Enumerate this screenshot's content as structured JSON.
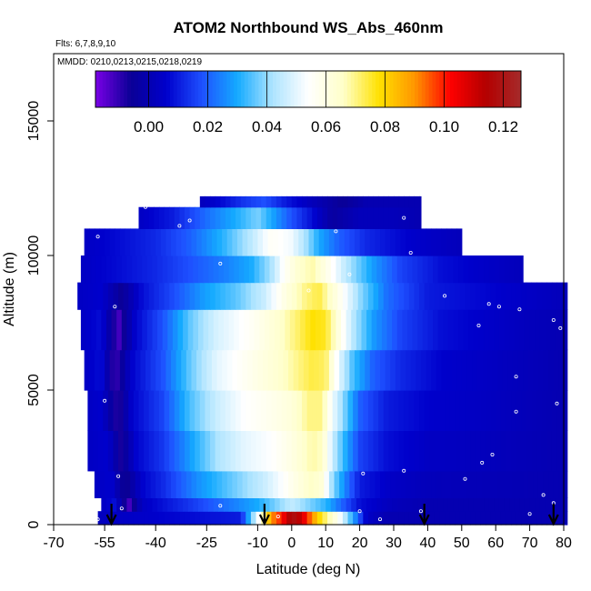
{
  "chart_data": {
    "type": "heatmap",
    "title": "ATOM2 Northbound WS_Abs_460nm",
    "flights_note": "Flts: 6,7,8,9,10",
    "dates_note": "MMDD: 0210,0213,0215,0218,0219",
    "xlabel": "Latitude (deg N)",
    "ylabel": "Altitude (m)",
    "xlim": [
      -70,
      80
    ],
    "ylim": [
      0,
      17500
    ],
    "x_ticks": [
      -70,
      -55,
      -40,
      -25,
      -10,
      0,
      10,
      20,
      30,
      40,
      50,
      60,
      70,
      80
    ],
    "x_tick_labels": [
      "-70",
      "-55",
      "-40",
      "-25",
      "-10",
      "0",
      "10",
      "20",
      "30",
      "40",
      "50",
      "60",
      "70",
      "80"
    ],
    "y_ticks": [
      0,
      5000,
      10000,
      15000
    ],
    "y_tick_labels": [
      "0",
      "5000",
      "10000",
      "15000"
    ],
    "colorbar": {
      "range": [
        -0.018,
        0.126
      ],
      "ticks": [
        0.0,
        0.02,
        0.04,
        0.06,
        0.08,
        0.1,
        0.12
      ],
      "tick_labels": [
        "0.00",
        "0.02",
        "0.04",
        "0.06",
        "0.08",
        "0.10",
        "0.12"
      ],
      "placement": "top, inside plot",
      "colors": [
        "#7a00e6",
        "#0a0096",
        "#0000cc",
        "#1e50ff",
        "#14aaff",
        "#aee4ff",
        "#ffffff",
        "#ffffc8",
        "#ffe100",
        "#ff9600",
        "#ff0000",
        "#b40000",
        "#a52a2a"
      ]
    },
    "series": [
      {
        "name": "WS_Abs_460nm",
        "layers": [
          {
            "alt_range": [
              0,
              500
            ],
            "lat_range": [
              -57,
              81
            ],
            "points": [
              [
                -57,
                0.003
              ],
              [
                -15,
                0.01
              ],
              [
                -9,
                0.06
              ],
              [
                -6,
                0.09
              ],
              [
                -3,
                0.1
              ],
              [
                0,
                0.12
              ],
              [
                3,
                0.11
              ],
              [
                6,
                0.09
              ],
              [
                9,
                0.075
              ],
              [
                13,
                0.06
              ],
              [
                18,
                0.03
              ],
              [
                22,
                0.005
              ],
              [
                28,
                0.0
              ],
              [
                81,
                0.0
              ]
            ]
          },
          {
            "alt_range": [
              500,
              1000
            ],
            "lat_range": [
              -56,
              81
            ],
            "points": [
              [
                -56,
                0.004
              ],
              [
                -52,
                0.008
              ],
              [
                -48,
                -0.013
              ],
              [
                -44,
                0.004
              ],
              [
                -30,
                0.014
              ],
              [
                -10,
                0.03
              ],
              [
                0,
                0.045
              ],
              [
                10,
                0.032
              ],
              [
                20,
                0.008
              ],
              [
                30,
                0.002
              ],
              [
                40,
                0.0
              ],
              [
                81,
                0.0
              ]
            ]
          },
          {
            "alt_range": [
              1000,
              2000
            ],
            "lat_range": [
              -58,
              81
            ],
            "points": [
              [
                -58,
                0.004
              ],
              [
                -53,
                0.006
              ],
              [
                -49,
                -0.008
              ],
              [
                -44,
                0.006
              ],
              [
                -38,
                0.012
              ],
              [
                -28,
                0.026
              ],
              [
                -18,
                0.036
              ],
              [
                -8,
                0.046
              ],
              [
                0,
                0.058
              ],
              [
                6,
                0.066
              ],
              [
                9,
                0.062
              ],
              [
                12,
                0.04
              ],
              [
                16,
                0.024
              ],
              [
                20,
                0.01
              ],
              [
                30,
                0.004
              ],
              [
                40,
                0.002
              ],
              [
                81,
                0.0
              ]
            ]
          },
          {
            "alt_range": [
              2000,
              3500
            ],
            "lat_range": [
              -60,
              81
            ],
            "points": [
              [
                -60,
                0.004
              ],
              [
                -54,
                0.006
              ],
              [
                -50,
                -0.008
              ],
              [
                -46,
                0.006
              ],
              [
                -38,
                0.014
              ],
              [
                -30,
                0.028
              ],
              [
                -22,
                0.042
              ],
              [
                -14,
                0.05
              ],
              [
                -6,
                0.054
              ],
              [
                0,
                0.06
              ],
              [
                6,
                0.068
              ],
              [
                9,
                0.066
              ],
              [
                12,
                0.046
              ],
              [
                16,
                0.03
              ],
              [
                20,
                0.016
              ],
              [
                28,
                0.008
              ],
              [
                40,
                0.004
              ],
              [
                81,
                0.0
              ]
            ]
          },
          {
            "alt_range": [
              3500,
              5000
            ],
            "lat_range": [
              -60,
              81
            ],
            "points": [
              [
                -60,
                0.004
              ],
              [
                -56,
                0.006
              ],
              [
                -51,
                -0.01
              ],
              [
                -47,
                0.006
              ],
              [
                -38,
                0.016
              ],
              [
                -30,
                0.034
              ],
              [
                -22,
                0.046
              ],
              [
                -14,
                0.054
              ],
              [
                -6,
                0.058
              ],
              [
                0,
                0.062
              ],
              [
                5,
                0.07
              ],
              [
                9,
                0.07
              ],
              [
                12,
                0.052
              ],
              [
                16,
                0.036
              ],
              [
                20,
                0.02
              ],
              [
                28,
                0.01
              ],
              [
                40,
                0.006
              ],
              [
                81,
                0.0
              ]
            ]
          },
          {
            "alt_range": [
              5000,
              6500
            ],
            "lat_range": [
              -61,
              81
            ],
            "points": [
              [
                -61,
                0.004
              ],
              [
                -56,
                0.008
              ],
              [
                -52,
                -0.012
              ],
              [
                -47,
                0.006
              ],
              [
                -38,
                0.018
              ],
              [
                -30,
                0.036
              ],
              [
                -22,
                0.05
              ],
              [
                -12,
                0.058
              ],
              [
                -4,
                0.064
              ],
              [
                2,
                0.07
              ],
              [
                6,
                0.074
              ],
              [
                10,
                0.072
              ],
              [
                14,
                0.05
              ],
              [
                18,
                0.034
              ],
              [
                24,
                0.02
              ],
              [
                32,
                0.012
              ],
              [
                44,
                0.006
              ],
              [
                81,
                0.0
              ]
            ]
          },
          {
            "alt_range": [
              6500,
              8000
            ],
            "lat_range": [
              -62,
              81
            ],
            "points": [
              [
                -62,
                0.004
              ],
              [
                -56,
                0.008
              ],
              [
                -51,
                -0.013
              ],
              [
                -46,
                0.006
              ],
              [
                -38,
                0.018
              ],
              [
                -30,
                0.036
              ],
              [
                -22,
                0.048
              ],
              [
                -12,
                0.056
              ],
              [
                -4,
                0.064
              ],
              [
                2,
                0.072
              ],
              [
                6,
                0.078
              ],
              [
                10,
                0.076
              ],
              [
                14,
                0.06
              ],
              [
                18,
                0.044
              ],
              [
                24,
                0.028
              ],
              [
                32,
                0.016
              ],
              [
                44,
                0.008
              ],
              [
                81,
                0.0
              ]
            ]
          },
          {
            "alt_range": [
              8000,
              9000
            ],
            "lat_range": [
              -63,
              81
            ],
            "points": [
              [
                -63,
                0.004
              ],
              [
                -56,
                0.006
              ],
              [
                -50,
                -0.006
              ],
              [
                -44,
                0.008
              ],
              [
                -36,
                0.016
              ],
              [
                -26,
                0.028
              ],
              [
                -16,
                0.036
              ],
              [
                -8,
                0.046
              ],
              [
                -2,
                0.06
              ],
              [
                4,
                0.07
              ],
              [
                8,
                0.074
              ],
              [
                14,
                0.058
              ],
              [
                20,
                0.04
              ],
              [
                28,
                0.022
              ],
              [
                40,
                0.01
              ],
              [
                81,
                0.002
              ]
            ]
          },
          {
            "alt_range": [
              9000,
              10000
            ],
            "lat_range": [
              -62,
              68
            ],
            "points": [
              [
                -62,
                0.004
              ],
              [
                -50,
                0.008
              ],
              [
                -40,
                0.012
              ],
              [
                -30,
                0.018
              ],
              [
                -20,
                0.024
              ],
              [
                -12,
                0.03
              ],
              [
                -6,
                0.042
              ],
              [
                -2,
                0.056
              ],
              [
                2,
                0.064
              ],
              [
                6,
                0.068
              ],
              [
                10,
                0.06
              ],
              [
                16,
                0.044
              ],
              [
                24,
                0.028
              ],
              [
                32,
                0.016
              ],
              [
                44,
                0.008
              ],
              [
                68,
                0.002
              ]
            ]
          },
          {
            "alt_range": [
              10000,
              11000
            ],
            "lat_range": [
              -61,
              50
            ],
            "points": [
              [
                -61,
                0.004
              ],
              [
                -50,
                0.008
              ],
              [
                -40,
                0.012
              ],
              [
                -30,
                0.02
              ],
              [
                -20,
                0.032
              ],
              [
                -12,
                0.044
              ],
              [
                -6,
                0.056
              ],
              [
                0,
                0.052
              ],
              [
                4,
                0.042
              ],
              [
                8,
                0.03
              ],
              [
                14,
                0.02
              ],
              [
                22,
                0.012
              ],
              [
                34,
                0.006
              ],
              [
                50,
                0.002
              ]
            ]
          },
          {
            "alt_range": [
              11000,
              11800
            ],
            "lat_range": [
              -45,
              38
            ],
            "points": [
              [
                -45,
                0.004
              ],
              [
                -35,
                0.01
              ],
              [
                -25,
                0.022
              ],
              [
                -15,
                0.032
              ],
              [
                -10,
                0.038
              ],
              [
                -6,
                0.03
              ],
              [
                0,
                0.018
              ],
              [
                6,
                0.008
              ],
              [
                12,
                -0.004
              ],
              [
                20,
                0.002
              ],
              [
                30,
                0.002
              ],
              [
                38,
                0.0
              ]
            ]
          },
          {
            "alt_range": [
              11800,
              12200
            ],
            "lat_range": [
              -27,
              38
            ],
            "points": [
              [
                -27,
                0.002
              ],
              [
                -20,
                0.008
              ],
              [
                -14,
                0.014
              ],
              [
                -8,
                0.018
              ],
              [
                -2,
                0.01
              ],
              [
                6,
                0.002
              ],
              [
                15,
                -0.006
              ],
              [
                22,
                0.0
              ],
              [
                38,
                0.0
              ]
            ]
          }
        ]
      }
    ],
    "flight_markers_lat": [
      -53,
      -8,
      39,
      77
    ],
    "grid": false,
    "legend": "none"
  }
}
